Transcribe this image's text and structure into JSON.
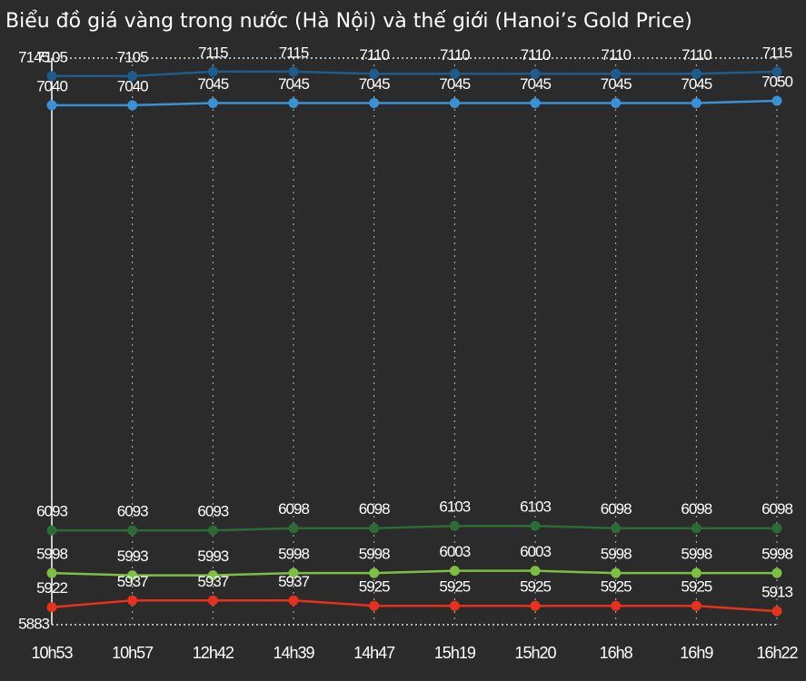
{
  "chart_data": {
    "type": "line",
    "title": "Biểu đồ giá vàng trong nước (Hà Nội) và thế giới (Hanoi’s Gold Price)",
    "categories": [
      "10h53",
      "10h57",
      "12h42",
      "14h39",
      "14h47",
      "15h19",
      "15h20",
      "16h8",
      "16h9",
      "16h22"
    ],
    "series": [
      {
        "color": "#1d5c8c",
        "values": [
          7105,
          7105,
          7115,
          7115,
          7110,
          7110,
          7110,
          7110,
          7110,
          7115
        ]
      },
      {
        "color": "#3b91d6",
        "values": [
          7040,
          7040,
          7045,
          7045,
          7045,
          7045,
          7045,
          7045,
          7045,
          7050
        ]
      },
      {
        "color": "#2c6a36",
        "values": [
          6093,
          6093,
          6093,
          6098,
          6098,
          6103,
          6103,
          6098,
          6098,
          6098
        ]
      },
      {
        "color": "#7cbf44",
        "values": [
          5998,
          5993,
          5993,
          5998,
          5998,
          6003,
          6003,
          5998,
          5998,
          5998
        ]
      },
      {
        "color": "#e8311c",
        "values": [
          5922,
          5937,
          5937,
          5937,
          5925,
          5925,
          5925,
          5925,
          5925,
          5913
        ]
      }
    ],
    "ylim": [
      5883,
      7145
    ],
    "yticks": [
      5883,
      7145
    ],
    "grid": true
  }
}
